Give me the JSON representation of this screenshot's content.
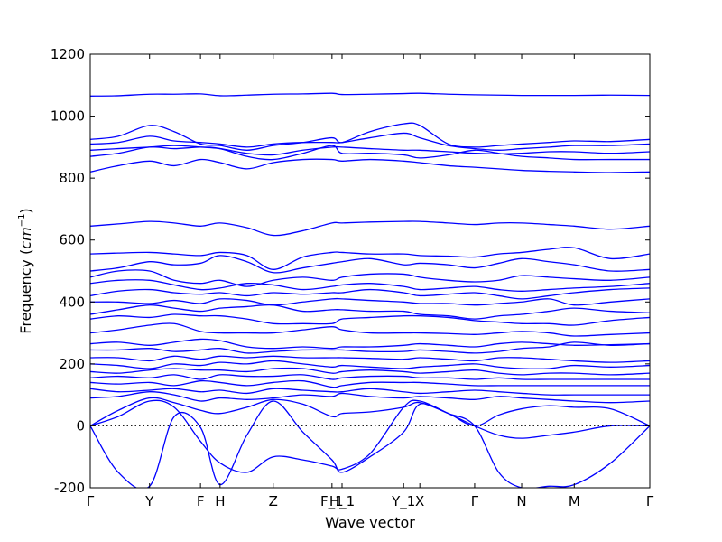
{
  "chart_data": {
    "type": "line",
    "xlabel": "Wave vector",
    "ylabel_main": "Frequency (",
    "ylabel_unit": "cm",
    "ylabel_exp": "−1",
    "ylabel_close": ")",
    "ylim": [
      -200,
      1200
    ],
    "yticks": [
      -200,
      0,
      200,
      400,
      600,
      800,
      1000,
      1200
    ],
    "xlim": [
      0,
      1
    ],
    "grid": false,
    "zero_line": 0,
    "high_symmetry_points": [
      {
        "label": "Γ",
        "x": 0.0
      },
      {
        "label": "Y",
        "x": 0.106
      },
      {
        "label": "F",
        "x": 0.197
      },
      {
        "label": "H",
        "x": 0.232
      },
      {
        "label": "Z",
        "x": 0.327
      },
      {
        "label": "F_1",
        "x": 0.432
      },
      {
        "label": "H_1",
        "x": 0.45
      },
      {
        "label": "Y_1",
        "x": 0.56
      },
      {
        "label": "X",
        "x": 0.589
      },
      {
        "label": "Γ",
        "x": 0.687
      },
      {
        "label": "N",
        "x": 0.771
      },
      {
        "label": "M",
        "x": 0.865
      },
      {
        "label": "Γ",
        "x": 1.0
      }
    ],
    "series_x": [
      0.0,
      0.05,
      0.106,
      0.15,
      0.197,
      0.232,
      0.28,
      0.327,
      0.38,
      0.432,
      0.45,
      0.5,
      0.56,
      0.589,
      0.64,
      0.687,
      0.73,
      0.771,
      0.82,
      0.865,
      0.93,
      1.0
    ],
    "series": [
      {
        "values": [
          1065,
          1066,
          1071,
          1071,
          1072,
          1066,
          1068,
          1071,
          1072,
          1074,
          1070,
          1071,
          1073,
          1074,
          1071,
          1069,
          1068,
          1067,
          1067,
          1067,
          1068,
          1067
        ]
      },
      {
        "values": [
          925,
          935,
          970,
          950,
          910,
          905,
          890,
          905,
          915,
          930,
          915,
          950,
          975,
          970,
          910,
          900,
          905,
          910,
          915,
          920,
          918,
          925
        ]
      },
      {
        "values": [
          910,
          915,
          935,
          920,
          915,
          910,
          900,
          910,
          915,
          915,
          915,
          930,
          945,
          930,
          905,
          895,
          890,
          895,
          900,
          905,
          905,
          910
        ]
      },
      {
        "values": [
          890,
          895,
          900,
          905,
          900,
          895,
          880,
          875,
          890,
          900,
          900,
          895,
          890,
          890,
          885,
          880,
          878,
          880,
          885,
          885,
          880,
          885
        ]
      },
      {
        "values": [
          870,
          880,
          900,
          895,
          900,
          895,
          870,
          860,
          880,
          905,
          880,
          880,
          875,
          865,
          875,
          890,
          880,
          870,
          865,
          860,
          860,
          860
        ]
      },
      {
        "values": [
          820,
          840,
          855,
          840,
          860,
          850,
          830,
          850,
          860,
          860,
          855,
          860,
          855,
          850,
          840,
          835,
          830,
          825,
          822,
          820,
          818,
          820
        ]
      },
      {
        "values": [
          645,
          652,
          660,
          655,
          645,
          655,
          640,
          615,
          630,
          655,
          655,
          658,
          660,
          660,
          655,
          650,
          655,
          655,
          650,
          645,
          635,
          645
        ]
      },
      {
        "values": [
          555,
          558,
          560,
          555,
          550,
          560,
          550,
          505,
          545,
          560,
          560,
          555,
          555,
          550,
          548,
          545,
          555,
          560,
          570,
          575,
          540,
          555
        ]
      },
      {
        "values": [
          500,
          510,
          530,
          520,
          525,
          550,
          530,
          495,
          510,
          525,
          530,
          540,
          520,
          525,
          520,
          510,
          525,
          540,
          530,
          520,
          500,
          505
        ]
      },
      {
        "values": [
          480,
          500,
          500,
          470,
          460,
          470,
          450,
          470,
          480,
          470,
          480,
          490,
          490,
          480,
          470,
          465,
          470,
          485,
          480,
          475,
          470,
          480
        ]
      },
      {
        "values": [
          460,
          470,
          470,
          455,
          440,
          445,
          460,
          455,
          440,
          450,
          455,
          460,
          450,
          440,
          445,
          450,
          440,
          435,
          440,
          445,
          450,
          460
        ]
      },
      {
        "values": [
          420,
          435,
          440,
          430,
          425,
          430,
          420,
          430,
          425,
          430,
          430,
          440,
          430,
          420,
          425,
          430,
          420,
          410,
          420,
          430,
          440,
          445
        ]
      },
      {
        "values": [
          400,
          400,
          395,
          405,
          395,
          410,
          405,
          390,
          400,
          410,
          410,
          405,
          400,
          395,
          395,
          390,
          395,
          400,
          410,
          390,
          400,
          410
        ]
      },
      {
        "values": [
          360,
          375,
          390,
          380,
          370,
          380,
          385,
          390,
          370,
          375,
          375,
          370,
          370,
          360,
          355,
          345,
          355,
          360,
          370,
          380,
          370,
          365
        ]
      },
      {
        "values": [
          345,
          355,
          350,
          360,
          355,
          355,
          345,
          330,
          330,
          330,
          345,
          350,
          355,
          355,
          350,
          340,
          335,
          330,
          330,
          325,
          340,
          350
        ]
      },
      {
        "values": [
          300,
          310,
          325,
          330,
          305,
          300,
          300,
          300,
          310,
          320,
          310,
          300,
          300,
          300,
          298,
          295,
          300,
          305,
          300,
          290,
          295,
          300
        ]
      },
      {
        "values": [
          265,
          270,
          260,
          270,
          280,
          275,
          255,
          250,
          255,
          250,
          255,
          255,
          260,
          265,
          260,
          255,
          265,
          270,
          265,
          260,
          262,
          265
        ]
      },
      {
        "values": [
          245,
          245,
          250,
          240,
          245,
          250,
          235,
          240,
          245,
          245,
          245,
          240,
          240,
          245,
          240,
          235,
          240,
          250,
          255,
          270,
          260,
          265
        ]
      },
      {
        "values": [
          220,
          220,
          210,
          225,
          215,
          225,
          220,
          225,
          220,
          220,
          220,
          218,
          215,
          220,
          215,
          210,
          220,
          220,
          215,
          210,
          205,
          210
        ]
      },
      {
        "values": [
          200,
          195,
          185,
          200,
          195,
          205,
          200,
          210,
          200,
          190,
          195,
          190,
          185,
          190,
          195,
          200,
          190,
          185,
          185,
          195,
          190,
          195
        ]
      },
      {
        "values": [
          175,
          170,
          180,
          185,
          180,
          180,
          175,
          185,
          185,
          170,
          175,
          180,
          175,
          170,
          175,
          180,
          170,
          165,
          170,
          170,
          165,
          170
        ]
      },
      {
        "values": [
          155,
          160,
          155,
          165,
          150,
          165,
          160,
          160,
          165,
          150,
          155,
          160,
          160,
          155,
          155,
          150,
          155,
          150,
          150,
          150,
          150,
          150
        ]
      },
      {
        "values": [
          140,
          135,
          140,
          130,
          145,
          140,
          130,
          140,
          145,
          125,
          130,
          140,
          140,
          140,
          135,
          130,
          130,
          130,
          130,
          130,
          130,
          130
        ]
      },
      {
        "values": [
          120,
          110,
          115,
          120,
          110,
          115,
          105,
          120,
          115,
          110,
          110,
          120,
          110,
          105,
          110,
          115,
          110,
          105,
          100,
          100,
          100,
          100
        ]
      },
      {
        "values": [
          90,
          95,
          110,
          100,
          80,
          90,
          85,
          90,
          100,
          95,
          105,
          95,
          90,
          95,
          90,
          85,
          95,
          90,
          85,
          80,
          75,
          80
        ]
      },
      {
        "values": [
          0,
          50,
          90,
          75,
          50,
          40,
          60,
          85,
          70,
          30,
          40,
          45,
          60,
          75,
          40,
          0,
          35,
          55,
          65,
          60,
          55,
          0
        ]
      },
      {
        "values": [
          0,
          30,
          80,
          60,
          -50,
          -120,
          -150,
          -100,
          -110,
          -130,
          -140,
          -90,
          60,
          80,
          40,
          0,
          -30,
          -40,
          -30,
          -20,
          0,
          0
        ]
      },
      {
        "values": [
          0,
          -150,
          -195,
          30,
          -5,
          -190,
          -30,
          80,
          -20,
          -110,
          -150,
          -100,
          -20,
          70,
          40,
          0,
          -150,
          -200,
          -195,
          -190,
          -120,
          0
        ]
      }
    ]
  }
}
